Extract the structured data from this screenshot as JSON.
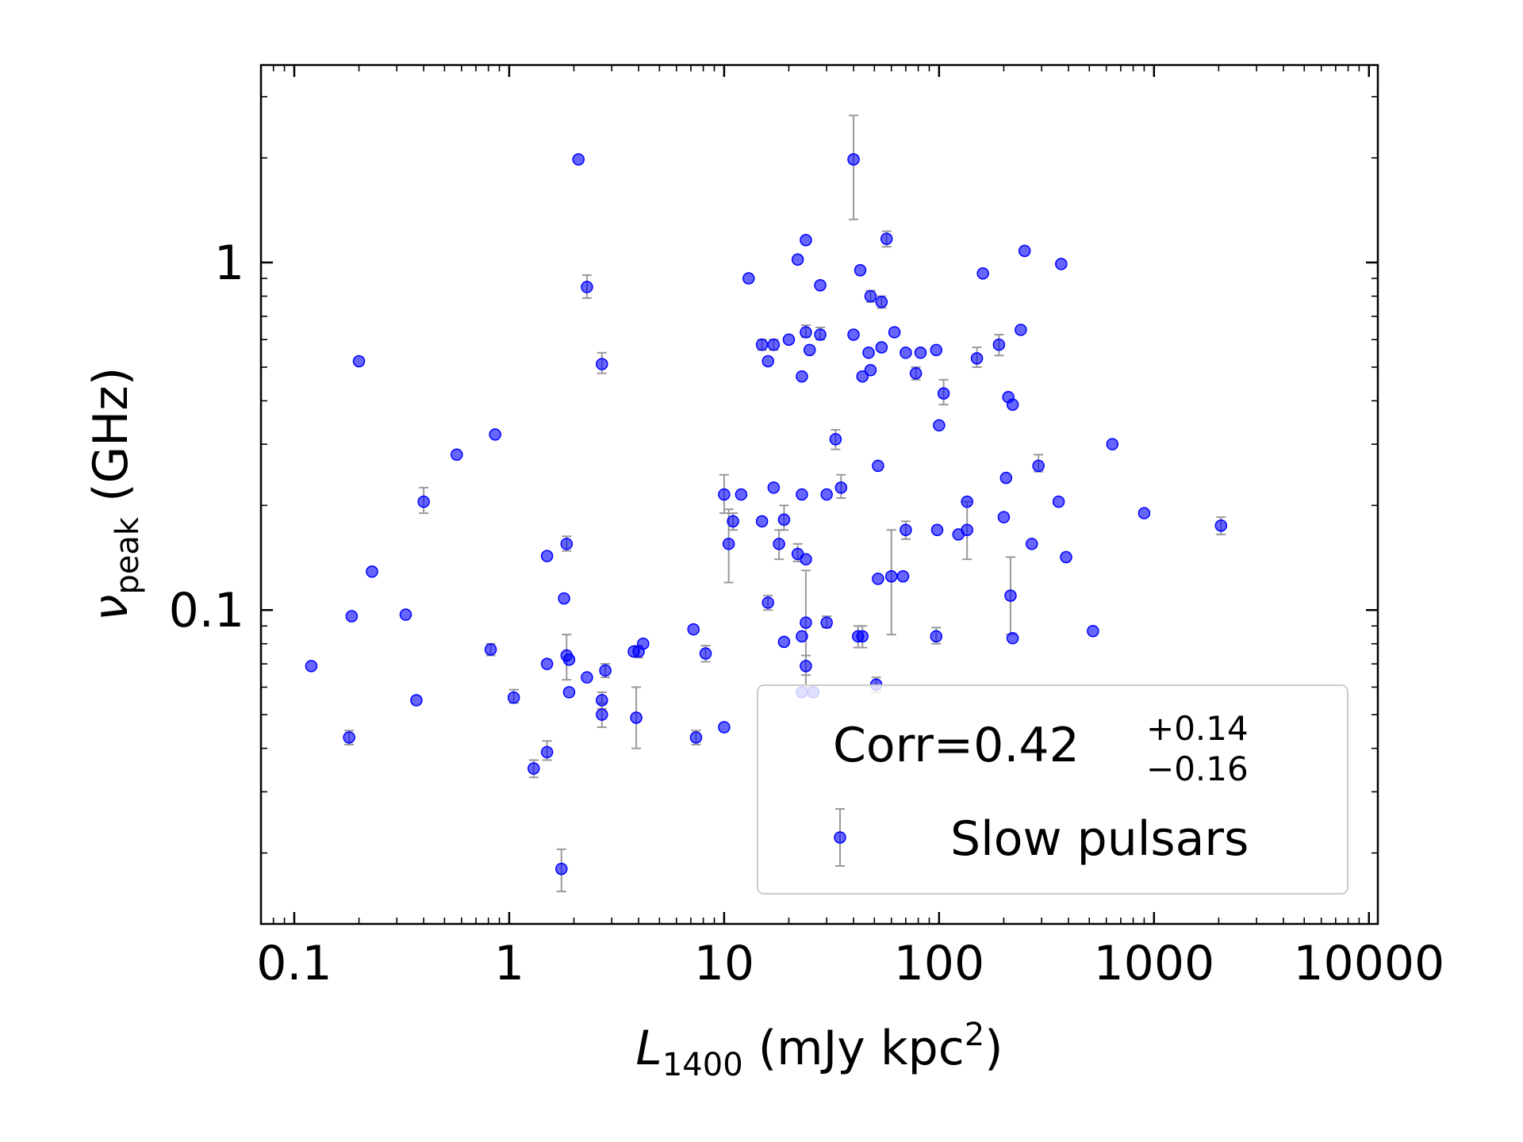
{
  "chart_data": {
    "type": "scatter",
    "xscale": "log",
    "yscale": "log",
    "xlim": [
      0.07,
      11000
    ],
    "ylim": [
      0.0125,
      3.7
    ],
    "xticks": [
      {
        "value": 0.1,
        "label": "0.1"
      },
      {
        "value": 1,
        "label": "1"
      },
      {
        "value": 10,
        "label": "10"
      },
      {
        "value": 100,
        "label": "100"
      },
      {
        "value": 1000,
        "label": "1000"
      },
      {
        "value": 10000,
        "label": "10000"
      }
    ],
    "yticks": [
      {
        "value": 0.1,
        "label": "0.1"
      },
      {
        "value": 1,
        "label": "1"
      }
    ],
    "xlabel": {
      "main": "L",
      "sub": "1400",
      "units": "(mJy kpc",
      "sup": "2",
      "close": ")"
    },
    "ylabel": {
      "main": "ν",
      "sub": "peak",
      "units": "(GHz)"
    },
    "grid": false,
    "legend": {
      "position": "bottom-right",
      "title": {
        "main": "Corr=0.42",
        "sup": "+0.14",
        "sub": "−0.16"
      },
      "entries": [
        {
          "label": "Slow pulsars",
          "color": "#0000ff"
        }
      ]
    },
    "colors": {
      "marker": "#0000ff",
      "errorbar": "#999999"
    },
    "series": [
      {
        "name": "Slow pulsars",
        "points": [
          {
            "x": 2.1,
            "y": 1.98
          },
          {
            "x": 40,
            "y": 1.98,
            "ylo": 1.33,
            "yhi": 2.65
          },
          {
            "x": 2.3,
            "y": 0.85,
            "ylo": 0.79,
            "yhi": 0.92
          },
          {
            "x": 2.7,
            "y": 0.51,
            "ylo": 0.48,
            "yhi": 0.55
          },
          {
            "x": 0.2,
            "y": 0.52
          },
          {
            "x": 57,
            "y": 1.17,
            "ylo": 1.11,
            "yhi": 1.23
          },
          {
            "x": 24,
            "y": 1.16
          },
          {
            "x": 22,
            "y": 1.02
          },
          {
            "x": 250,
            "y": 1.08
          },
          {
            "x": 370,
            "y": 0.99
          },
          {
            "x": 43,
            "y": 0.95
          },
          {
            "x": 13,
            "y": 0.9
          },
          {
            "x": 28,
            "y": 0.86
          },
          {
            "x": 160,
            "y": 0.93
          },
          {
            "x": 48,
            "y": 0.8,
            "ylo": 0.77,
            "yhi": 0.83
          },
          {
            "x": 54,
            "y": 0.77,
            "ylo": 0.74,
            "yhi": 0.8
          },
          {
            "x": 24,
            "y": 0.63,
            "ylo": 0.61,
            "yhi": 0.66
          },
          {
            "x": 28,
            "y": 0.62,
            "ylo": 0.6,
            "yhi": 0.65
          },
          {
            "x": 40,
            "y": 0.62
          },
          {
            "x": 62,
            "y": 0.63
          },
          {
            "x": 240,
            "y": 0.64
          },
          {
            "x": 15,
            "y": 0.58,
            "ylo": 0.56,
            "yhi": 0.6
          },
          {
            "x": 17,
            "y": 0.58,
            "ylo": 0.56,
            "yhi": 0.6
          },
          {
            "x": 20,
            "y": 0.6
          },
          {
            "x": 25,
            "y": 0.56
          },
          {
            "x": 47,
            "y": 0.55
          },
          {
            "x": 54,
            "y": 0.57
          },
          {
            "x": 70,
            "y": 0.55
          },
          {
            "x": 82,
            "y": 0.55
          },
          {
            "x": 97,
            "y": 0.56
          },
          {
            "x": 150,
            "y": 0.53,
            "ylo": 0.5,
            "yhi": 0.57
          },
          {
            "x": 190,
            "y": 0.58,
            "ylo": 0.54,
            "yhi": 0.62
          },
          {
            "x": 16,
            "y": 0.52
          },
          {
            "x": 23,
            "y": 0.47
          },
          {
            "x": 44,
            "y": 0.47
          },
          {
            "x": 48,
            "y": 0.49
          },
          {
            "x": 78,
            "y": 0.48,
            "ylo": 0.46,
            "yhi": 0.5
          },
          {
            "x": 105,
            "y": 0.42,
            "ylo": 0.39,
            "yhi": 0.46
          },
          {
            "x": 210,
            "y": 0.41
          },
          {
            "x": 220,
            "y": 0.39
          },
          {
            "x": 0.57,
            "y": 0.28
          },
          {
            "x": 0.86,
            "y": 0.32
          },
          {
            "x": 33,
            "y": 0.31,
            "ylo": 0.29,
            "yhi": 0.33
          },
          {
            "x": 100,
            "y": 0.34
          },
          {
            "x": 640,
            "y": 0.3
          },
          {
            "x": 52,
            "y": 0.26
          },
          {
            "x": 290,
            "y": 0.26,
            "ylo": 0.25,
            "yhi": 0.28
          },
          {
            "x": 205,
            "y": 0.24
          },
          {
            "x": 0.4,
            "y": 0.205,
            "ylo": 0.19,
            "yhi": 0.225
          },
          {
            "x": 10,
            "y": 0.215,
            "ylo": 0.19,
            "yhi": 0.245
          },
          {
            "x": 12,
            "y": 0.215
          },
          {
            "x": 17,
            "y": 0.225
          },
          {
            "x": 23,
            "y": 0.215
          },
          {
            "x": 30,
            "y": 0.215
          },
          {
            "x": 35,
            "y": 0.225,
            "ylo": 0.21,
            "yhi": 0.245
          },
          {
            "x": 135,
            "y": 0.205
          },
          {
            "x": 360,
            "y": 0.205
          },
          {
            "x": 900,
            "y": 0.19
          },
          {
            "x": 2050,
            "y": 0.175,
            "ylo": 0.165,
            "yhi": 0.185
          },
          {
            "x": 11,
            "y": 0.18,
            "ylo": 0.17,
            "yhi": 0.19
          },
          {
            "x": 15,
            "y": 0.18
          },
          {
            "x": 19,
            "y": 0.182,
            "ylo": 0.17,
            "yhi": 0.2
          },
          {
            "x": 200,
            "y": 0.185
          },
          {
            "x": 70,
            "y": 0.17,
            "ylo": 0.16,
            "yhi": 0.18
          },
          {
            "x": 98,
            "y": 0.17
          },
          {
            "x": 123,
            "y": 0.165
          },
          {
            "x": 135,
            "y": 0.17,
            "ylo": 0.14,
            "yhi": 0.205
          },
          {
            "x": 1.85,
            "y": 0.155,
            "ylo": 0.148,
            "yhi": 0.163
          },
          {
            "x": 10.5,
            "y": 0.155,
            "ylo": 0.12,
            "yhi": 0.195
          },
          {
            "x": 18,
            "y": 0.155,
            "ylo": 0.14,
            "yhi": 0.17
          },
          {
            "x": 270,
            "y": 0.155
          },
          {
            "x": 1.5,
            "y": 0.143
          },
          {
            "x": 22,
            "y": 0.145,
            "ylo": 0.138,
            "yhi": 0.155
          },
          {
            "x": 24,
            "y": 0.14
          },
          {
            "x": 390,
            "y": 0.142
          },
          {
            "x": 0.23,
            "y": 0.129
          },
          {
            "x": 52,
            "y": 0.123
          },
          {
            "x": 60,
            "y": 0.125,
            "ylo": 0.085,
            "yhi": 0.17
          },
          {
            "x": 68,
            "y": 0.125
          },
          {
            "x": 1.8,
            "y": 0.108
          },
          {
            "x": 16,
            "y": 0.105,
            "ylo": 0.1,
            "yhi": 0.11
          },
          {
            "x": 215,
            "y": 0.11,
            "ylo": 0.085,
            "yhi": 0.142
          },
          {
            "x": 0.185,
            "y": 0.096
          },
          {
            "x": 0.33,
            "y": 0.097
          },
          {
            "x": 24,
            "y": 0.092,
            "ylo": 0.06,
            "yhi": 0.13
          },
          {
            "x": 30,
            "y": 0.092,
            "ylo": 0.089,
            "yhi": 0.096
          },
          {
            "x": 7.2,
            "y": 0.088
          },
          {
            "x": 23,
            "y": 0.084
          },
          {
            "x": 42,
            "y": 0.084,
            "ylo": 0.078,
            "yhi": 0.09
          },
          {
            "x": 44,
            "y": 0.084,
            "ylo": 0.078,
            "yhi": 0.09
          },
          {
            "x": 97,
            "y": 0.084,
            "ylo": 0.08,
            "yhi": 0.089
          },
          {
            "x": 220,
            "y": 0.083
          },
          {
            "x": 520,
            "y": 0.087
          },
          {
            "x": 19,
            "y": 0.081
          },
          {
            "x": 4.2,
            "y": 0.08
          },
          {
            "x": 0.82,
            "y": 0.077,
            "ylo": 0.074,
            "yhi": 0.08
          },
          {
            "x": 1.85,
            "y": 0.074,
            "ylo": 0.063,
            "yhi": 0.085
          },
          {
            "x": 3.8,
            "y": 0.076
          },
          {
            "x": 4.0,
            "y": 0.076,
            "ylo": 0.073,
            "yhi": 0.079
          },
          {
            "x": 8.2,
            "y": 0.075,
            "ylo": 0.071,
            "yhi": 0.079
          },
          {
            "x": 1.9,
            "y": 0.072
          },
          {
            "x": 0.12,
            "y": 0.069
          },
          {
            "x": 1.5,
            "y": 0.07
          },
          {
            "x": 2.8,
            "y": 0.067,
            "ylo": 0.064,
            "yhi": 0.07
          },
          {
            "x": 2.3,
            "y": 0.064
          },
          {
            "x": 24,
            "y": 0.069,
            "ylo": 0.065,
            "yhi": 0.074
          },
          {
            "x": 51,
            "y": 0.061,
            "ylo": 0.058,
            "yhi": 0.064
          },
          {
            "x": 1.9,
            "y": 0.058
          },
          {
            "x": 23,
            "y": 0.058
          },
          {
            "x": 26,
            "y": 0.058
          },
          {
            "x": 1.05,
            "y": 0.056,
            "ylo": 0.054,
            "yhi": 0.059
          },
          {
            "x": 0.37,
            "y": 0.055
          },
          {
            "x": 2.7,
            "y": 0.055,
            "ylo": 0.052,
            "yhi": 0.058
          },
          {
            "x": 2.7,
            "y": 0.05,
            "ylo": 0.046,
            "yhi": 0.054
          },
          {
            "x": 3.9,
            "y": 0.049,
            "ylo": 0.04,
            "yhi": 0.06
          },
          {
            "x": 10,
            "y": 0.046
          },
          {
            "x": 0.18,
            "y": 0.043,
            "ylo": 0.041,
            "yhi": 0.045
          },
          {
            "x": 7.4,
            "y": 0.043,
            "ylo": 0.041,
            "yhi": 0.045
          },
          {
            "x": 1.5,
            "y": 0.039,
            "ylo": 0.037,
            "yhi": 0.042
          },
          {
            "x": 1.3,
            "y": 0.035,
            "ylo": 0.033,
            "yhi": 0.037
          },
          {
            "x": 1.75,
            "y": 0.018,
            "ylo": 0.0155,
            "yhi": 0.0205
          }
        ]
      }
    ]
  }
}
